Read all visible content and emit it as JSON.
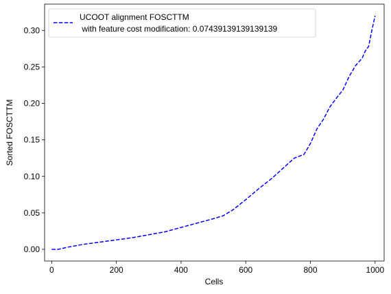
{
  "chart_data": {
    "type": "line",
    "title": "",
    "xlabel": "Cells",
    "ylabel": "Sorted FOSCTTM",
    "xlim": [
      -22,
      1028
    ],
    "ylim": [
      -0.016,
      0.336
    ],
    "xticks": [
      0,
      200,
      400,
      600,
      800,
      1000
    ],
    "yticks": [
      0.0,
      0.05,
      0.1,
      0.15,
      0.2,
      0.25,
      0.3
    ],
    "xtick_labels": [
      "0",
      "200",
      "400",
      "600",
      "800",
      "1000"
    ],
    "ytick_labels": [
      "0.00",
      "0.05",
      "0.10",
      "0.15",
      "0.20",
      "0.25",
      "0.30"
    ],
    "grid": false,
    "legend_position": "upper-left",
    "series": [
      {
        "name_lines": [
          "UCOOT alignment FOSCTTM",
          " with feature cost modification: 0.07439139139139139"
        ],
        "color": "#0000ff",
        "line_style": "dashed",
        "x": [
          0,
          20,
          50,
          100,
          150,
          200,
          250,
          300,
          350,
          400,
          450,
          500,
          530,
          560,
          600,
          640,
          680,
          720,
          750,
          780,
          800,
          820,
          840,
          860,
          880,
          900,
          920,
          940,
          960,
          970,
          980,
          990,
          1000
        ],
        "y": [
          0.0,
          0.0,
          0.003,
          0.007,
          0.01,
          0.013,
          0.016,
          0.02,
          0.024,
          0.03,
          0.036,
          0.042,
          0.046,
          0.054,
          0.068,
          0.083,
          0.097,
          0.113,
          0.125,
          0.13,
          0.145,
          0.165,
          0.178,
          0.195,
          0.207,
          0.218,
          0.237,
          0.252,
          0.262,
          0.272,
          0.278,
          0.3,
          0.32
        ]
      }
    ]
  }
}
